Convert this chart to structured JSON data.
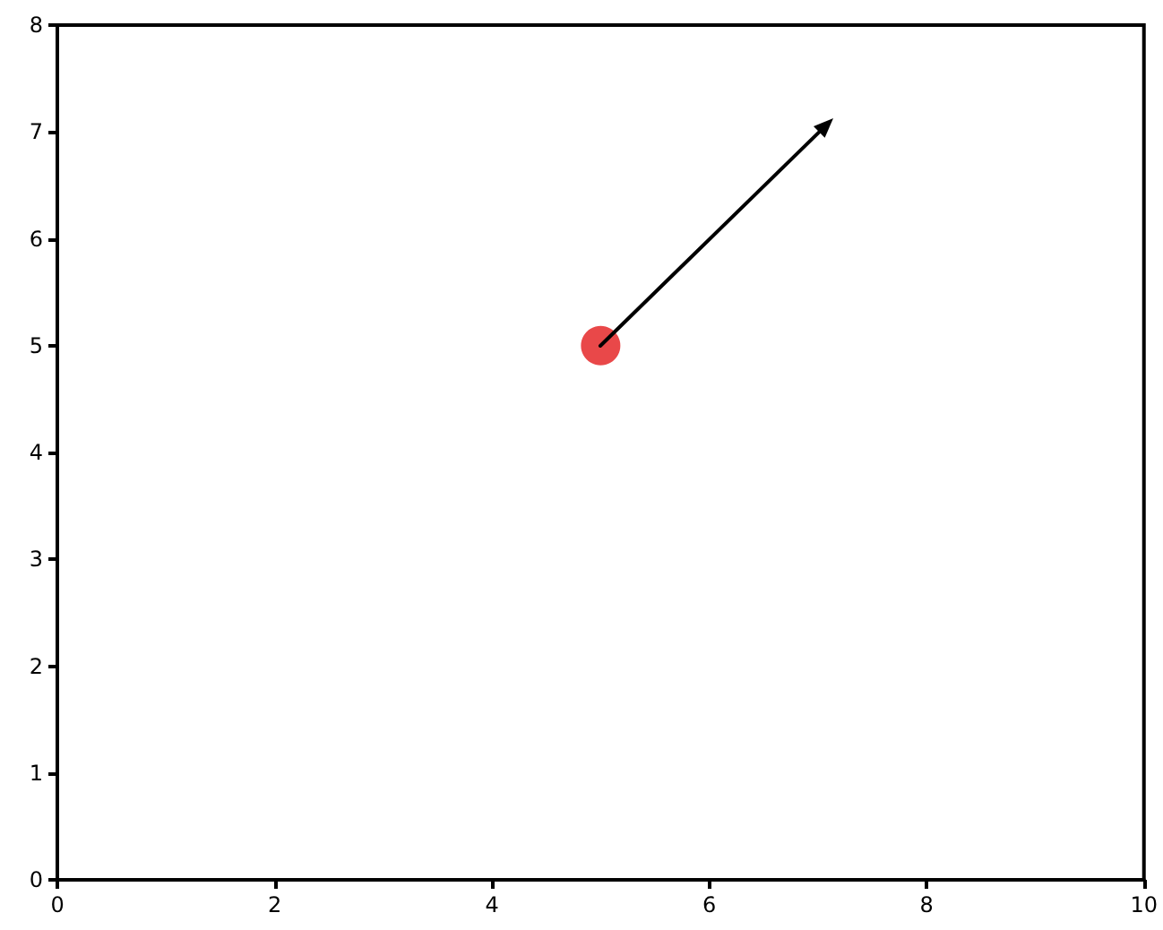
{
  "chart_data": {
    "type": "scatter",
    "x": [
      5
    ],
    "values": [
      5
    ],
    "color": "#e31a1c",
    "marker": "circle",
    "xlim": [
      0,
      10
    ],
    "ylim": [
      0,
      8
    ],
    "xticks": [
      0,
      2,
      4,
      6,
      8,
      10
    ],
    "yticks": [
      0,
      1,
      2,
      3,
      4,
      5,
      6,
      7,
      8
    ]
  }
}
